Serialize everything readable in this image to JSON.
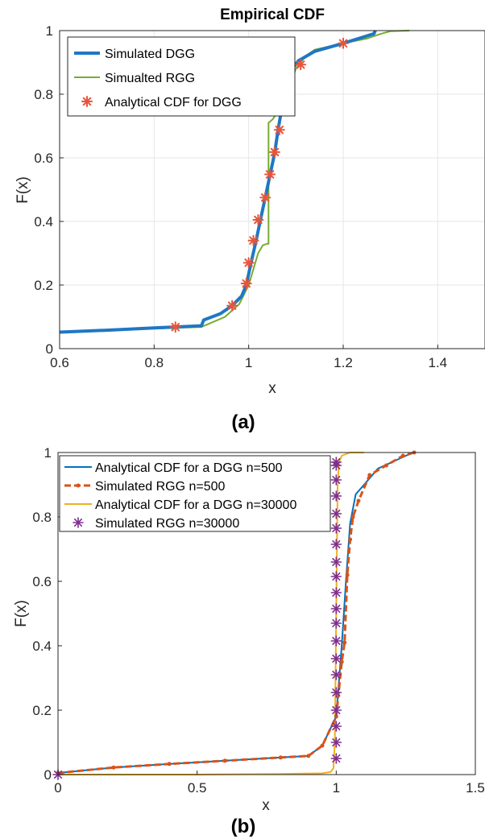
{
  "colors": {
    "dgg_blue": "#1f77c4",
    "rgg_green": "#77ac30",
    "analytical_orange": "#e8553a",
    "b_blue": "#0072bd",
    "b_red": "#d95319",
    "b_yellow": "#edb120",
    "b_purple": "#7e2f8e"
  },
  "chart_data": [
    {
      "type": "line",
      "title": "Empirical CDF",
      "xlabel": "x",
      "ylabel": "F(x)",
      "panel_label": "(a)",
      "xlim": [
        0.6,
        1.5
      ],
      "ylim": [
        0,
        1
      ],
      "xticks": [
        0.6,
        0.8,
        1,
        1.2,
        1.4
      ],
      "xtick_labels": [
        "0.6",
        "0.8",
        "1",
        "1.2",
        "1.4"
      ],
      "yticks": [
        0,
        0.2,
        0.4,
        0.6,
        0.8,
        1
      ],
      "ytick_labels": [
        "0",
        "0.2",
        "0.4",
        "0.6",
        "0.8",
        "1"
      ],
      "grid": true,
      "legend_position": "top-left",
      "series": [
        {
          "name": "Simulated DGG",
          "color": "#1f77c4",
          "style": "solid-thick",
          "x": [
            0.6,
            0.7,
            0.8,
            0.9,
            0.905,
            0.94,
            0.965,
            0.985,
            0.995,
            1.005,
            1.015,
            1.025,
            1.035,
            1.045,
            1.055,
            1.062,
            1.07,
            1.077,
            1.085,
            1.095,
            1.105,
            1.14,
            1.2,
            1.265,
            1.268
          ],
          "y": [
            0.052,
            0.058,
            0.065,
            0.072,
            0.09,
            0.11,
            0.135,
            0.165,
            0.2,
            0.27,
            0.335,
            0.405,
            0.475,
            0.545,
            0.615,
            0.685,
            0.755,
            0.82,
            0.855,
            0.885,
            0.905,
            0.935,
            0.96,
            0.99,
            1.0
          ]
        },
        {
          "name": "Simualted RGG",
          "color": "#77ac30",
          "style": "solid",
          "x": [
            0.6,
            0.7,
            0.8,
            0.9,
            0.95,
            0.98,
            1.0,
            1.01,
            1.02,
            1.03,
            1.04,
            1.042,
            1.042,
            1.05,
            1.06,
            1.07,
            1.08,
            1.09,
            1.1,
            1.12,
            1.14,
            1.2,
            1.25,
            1.28,
            1.3,
            1.34
          ],
          "y": [
            0.052,
            0.058,
            0.063,
            0.068,
            0.1,
            0.14,
            0.2,
            0.25,
            0.3,
            0.325,
            0.33,
            0.33,
            0.71,
            0.72,
            0.74,
            0.76,
            0.8,
            0.84,
            0.88,
            0.92,
            0.94,
            0.96,
            0.975,
            0.99,
            0.998,
            1.0
          ]
        },
        {
          "name": "Analytical CDF for DGG",
          "color": "#e8553a",
          "style": "asterisk-markers",
          "x": [
            0.845,
            0.965,
            0.995,
            1.0,
            1.01,
            1.02,
            1.035,
            1.045,
            1.055,
            1.065,
            1.075,
            1.085,
            1.11,
            1.2
          ],
          "y": [
            0.068,
            0.135,
            0.205,
            0.27,
            0.34,
            0.405,
            0.475,
            0.548,
            0.618,
            0.688,
            0.756,
            0.826,
            0.893,
            0.96
          ]
        }
      ]
    },
    {
      "type": "line",
      "title": "",
      "xlabel": "x",
      "ylabel": "F(x)",
      "panel_label": "(b)",
      "xlim": [
        0,
        1.5
      ],
      "ylim": [
        0,
        1
      ],
      "xticks": [
        0,
        0.5,
        1,
        1.5
      ],
      "xtick_labels": [
        "0",
        "0.5",
        "1",
        "1.5"
      ],
      "yticks": [
        0,
        0.2,
        0.4,
        0.6,
        0.8,
        1
      ],
      "ytick_labels": [
        "0",
        "0.2",
        "0.4",
        "0.6",
        "0.8",
        "1"
      ],
      "grid": false,
      "legend_position": "top-left",
      "series": [
        {
          "name": "Analytical CDF for a DGG n=500",
          "color": "#0072bd",
          "style": "solid",
          "x": [
            0,
            0.2,
            0.4,
            0.6,
            0.8,
            0.9,
            0.95,
            1.0,
            1.02,
            1.035,
            1.05,
            1.07,
            1.1,
            1.15,
            1.2,
            1.25,
            1.28
          ],
          "y": [
            0.005,
            0.022,
            0.033,
            0.043,
            0.053,
            0.058,
            0.09,
            0.18,
            0.4,
            0.6,
            0.78,
            0.87,
            0.9,
            0.95,
            0.97,
            0.99,
            1.0
          ]
        },
        {
          "name": "Simulated RGG n=500",
          "color": "#d95319",
          "style": "dash-dot-markers",
          "x": [
            0,
            0.2,
            0.4,
            0.6,
            0.8,
            0.9,
            0.95,
            1.0,
            1.02,
            1.03,
            1.04,
            1.05,
            1.06,
            1.08,
            1.12,
            1.18,
            1.24,
            1.28
          ],
          "y": [
            0.005,
            0.022,
            0.033,
            0.043,
            0.053,
            0.058,
            0.09,
            0.18,
            0.35,
            0.41,
            0.62,
            0.73,
            0.8,
            0.85,
            0.93,
            0.96,
            0.99,
            1.0
          ]
        },
        {
          "name": "Analytical CDF for a DGG n=30000",
          "color": "#edb120",
          "style": "solid",
          "x": [
            0,
            0.5,
            0.8,
            0.95,
            0.98,
            0.99,
            0.995,
            1.0,
            1.005,
            1.01,
            1.02,
            1.05,
            1.1
          ],
          "y": [
            0.0,
            0.0,
            0.002,
            0.004,
            0.008,
            0.02,
            0.1,
            0.5,
            0.9,
            0.97,
            0.99,
            1.0,
            1.0
          ]
        },
        {
          "name": "Simulated RGG n=30000",
          "color": "#7e2f8e",
          "style": "asterisk-markers",
          "x": [
            0,
            1.0,
            1.0,
            1.0,
            1.0,
            1.0,
            1.0,
            1.0,
            1.0,
            1.0,
            1.0,
            1.0,
            1.0,
            1.0,
            1.0,
            1.0,
            1.0,
            1.0
          ],
          "y": [
            0.0,
            0.05,
            0.1,
            0.15,
            0.2,
            0.255,
            0.31,
            0.36,
            0.415,
            0.47,
            0.515,
            0.565,
            0.615,
            0.66,
            0.715,
            0.765,
            0.81,
            0.865
          ]
        }
      ],
      "extra_marker_points": {
        "series": "Simulated RGG n=30000",
        "x": [
          1.0,
          1.0,
          1.0
        ],
        "y": [
          0.915,
          0.96,
          0.97
        ]
      }
    }
  ]
}
